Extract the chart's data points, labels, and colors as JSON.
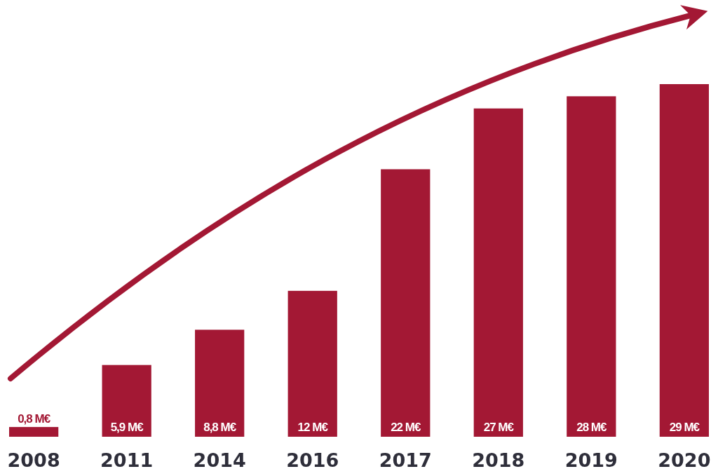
{
  "chart_data": {
    "type": "bar",
    "categories": [
      "2008",
      "2011",
      "2014",
      "2016",
      "2017",
      "2018",
      "2019",
      "2020"
    ],
    "values": [
      0.8,
      5.9,
      8.8,
      12,
      22,
      27,
      28,
      29
    ],
    "value_labels": [
      "0,8 M€",
      "5,9 M€",
      "8,8 M€",
      "12 M€",
      "22 M€",
      "27 M€",
      "28 M€",
      "29 M€"
    ],
    "color": "#a31834",
    "grid": false
  }
}
